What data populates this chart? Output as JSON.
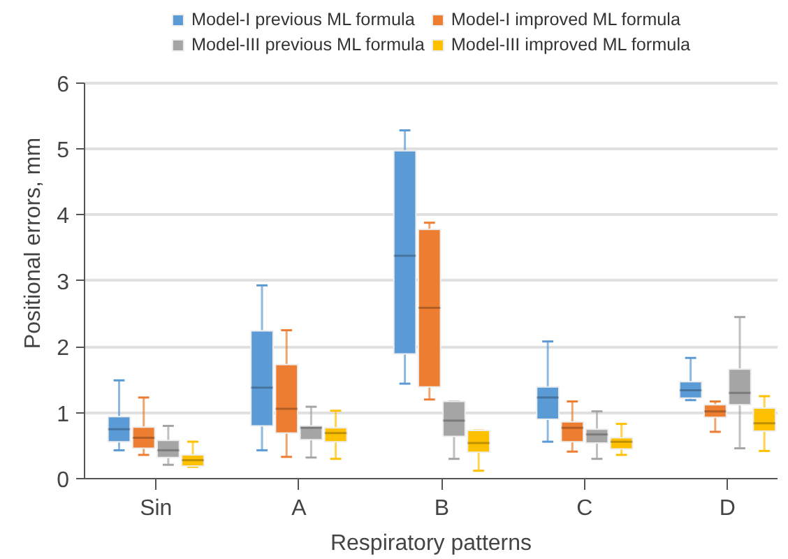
{
  "chart_data": {
    "type": "box",
    "xlabel": "Respiratory patterns",
    "ylabel": "Positional errors, mm",
    "categories": [
      "Sin",
      "A",
      "B",
      "C",
      "D"
    ],
    "ylim": [
      0,
      6
    ],
    "yticks": [
      0,
      1,
      2,
      3,
      4,
      5,
      6
    ],
    "grid": "y",
    "legend": "top",
    "series": [
      {
        "name": "Model-I previous ML formula",
        "color": "#5b9bd5",
        "boxes": [
          {
            "low": 0.43,
            "q1": 0.56,
            "median": 0.75,
            "q3": 0.94,
            "high": 1.49
          },
          {
            "low": 0.43,
            "q1": 0.8,
            "median": 1.38,
            "q3": 2.24,
            "high": 2.93
          },
          {
            "low": 1.44,
            "q1": 1.89,
            "median": 3.38,
            "q3": 4.97,
            "high": 5.28
          },
          {
            "low": 0.56,
            "q1": 0.9,
            "median": 1.23,
            "q3": 1.39,
            "high": 2.08
          },
          {
            "low": 1.19,
            "q1": 1.22,
            "median": 1.34,
            "q3": 1.47,
            "high": 1.83
          }
        ]
      },
      {
        "name": "Model-I improved ML formula",
        "color": "#ed7d31",
        "boxes": [
          {
            "low": 0.36,
            "q1": 0.46,
            "median": 0.62,
            "q3": 0.78,
            "high": 1.23
          },
          {
            "low": 0.33,
            "q1": 0.69,
            "median": 1.06,
            "q3": 1.73,
            "high": 2.25
          },
          {
            "low": 1.2,
            "q1": 1.39,
            "median": 2.59,
            "q3": 3.78,
            "high": 3.88
          },
          {
            "low": 0.41,
            "q1": 0.56,
            "median": 0.77,
            "q3": 0.86,
            "high": 1.17
          },
          {
            "low": 0.71,
            "q1": 0.93,
            "median": 1.02,
            "q3": 1.12,
            "high": 1.17
          }
        ]
      },
      {
        "name": "Model-III previous ML formula",
        "color": "#a5a5a5",
        "boxes": [
          {
            "low": 0.21,
            "q1": 0.32,
            "median": 0.43,
            "q3": 0.58,
            "high": 0.8
          },
          {
            "low": 0.32,
            "q1": 0.59,
            "median": 0.77,
            "q3": 0.8,
            "high": 1.09
          },
          {
            "low": 0.3,
            "q1": 0.64,
            "median": 0.88,
            "q3": 1.17,
            "high": 1.17
          },
          {
            "low": 0.3,
            "q1": 0.54,
            "median": 0.67,
            "q3": 0.75,
            "high": 1.02
          },
          {
            "low": 0.46,
            "q1": 1.12,
            "median": 1.3,
            "q3": 1.66,
            "high": 2.45
          }
        ]
      },
      {
        "name": "Model-III improved ML formula",
        "color": "#ffc000",
        "boxes": [
          {
            "low": 0.18,
            "q1": 0.19,
            "median": 0.28,
            "q3": 0.36,
            "high": 0.56
          },
          {
            "low": 0.3,
            "q1": 0.56,
            "median": 0.69,
            "q3": 0.77,
            "high": 1.03
          },
          {
            "low": 0.12,
            "q1": 0.4,
            "median": 0.54,
            "q3": 0.73,
            "high": 0.73
          },
          {
            "low": 0.36,
            "q1": 0.45,
            "median": 0.56,
            "q3": 0.62,
            "high": 0.83
          },
          {
            "low": 0.42,
            "q1": 0.72,
            "median": 0.84,
            "q3": 1.07,
            "high": 1.25
          }
        ]
      }
    ]
  }
}
